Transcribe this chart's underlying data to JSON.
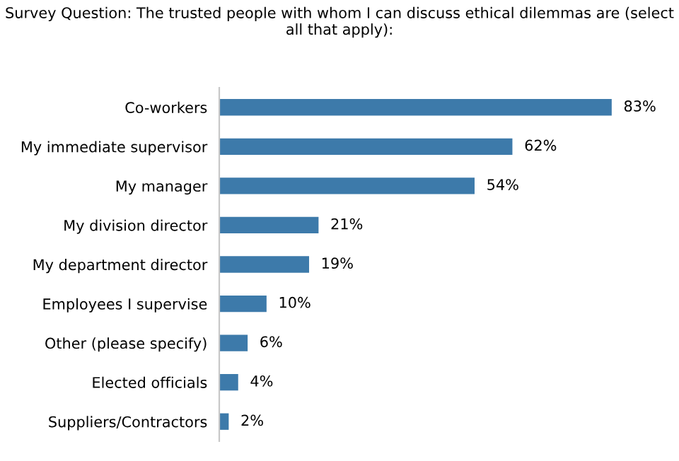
{
  "chart_data": {
    "type": "bar",
    "orientation": "horizontal",
    "title": "Survey Question: The trusted people with whom I can discuss ethical dilemmas are (select all that apply):",
    "categories": [
      "Co-workers",
      "My immediate supervisor",
      "My manager",
      "My division director",
      "My department director",
      "Employees I supervise",
      "Other (please specify)",
      "Elected officials",
      "Suppliers/Contractors"
    ],
    "values": [
      83,
      62,
      54,
      21,
      19,
      10,
      6,
      4,
      2
    ],
    "value_labels": [
      "83%",
      "62%",
      "54%",
      "21%",
      "19%",
      "10%",
      "6%",
      "4%",
      "2%"
    ],
    "color": "#3d7aaa",
    "grid": false,
    "legend": false
  }
}
